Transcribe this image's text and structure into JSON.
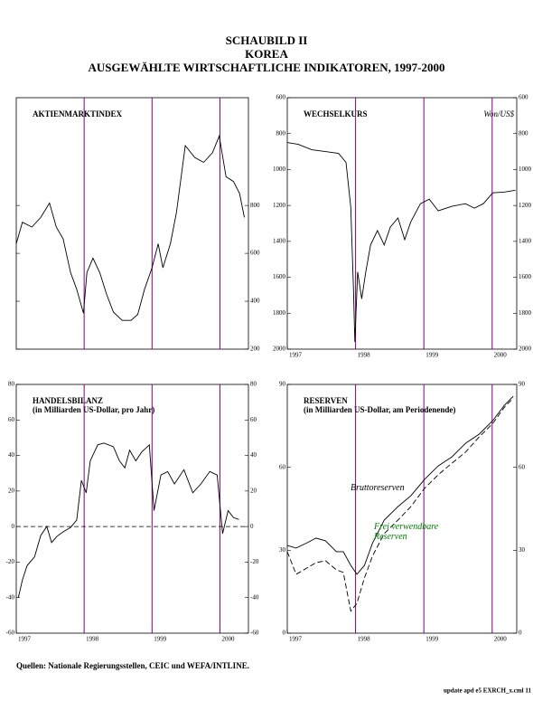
{
  "title": [
    "SCHAUBILD II",
    "KOREA",
    "AUSGEWÄHLTE WIRTSCHAFTLICHE INDIKATOREN, 1997-2000"
  ],
  "source": "Quellen:  Nationale Regierungsstellen, CEIC und WEFA/INTLINE.",
  "footnote": "update apd e5 EXRCH_x.cml 11",
  "chart_data": [
    {
      "type": "line",
      "title": "AKTIENMARKTINDEX",
      "x": [
        1997.0,
        1997.09,
        1997.23,
        1997.36,
        1997.49,
        1997.59,
        1997.69,
        1997.8,
        1997.89,
        1997.99,
        1998.04,
        1998.13,
        1998.23,
        1998.33,
        1998.43,
        1998.56,
        1998.69,
        1998.79,
        1998.89,
        1999.0,
        1999.09,
        1999.16,
        1999.27,
        1999.36,
        1999.49,
        1999.63,
        1999.76,
        1999.89,
        1999.99,
        2000.09,
        2000.2,
        2000.29,
        2000.36
      ],
      "series": [
        {
          "color": "#000000",
          "values": [
            640,
            730,
            710,
            750,
            810,
            710,
            660,
            520,
            450,
            350,
            520,
            580,
            520,
            430,
            355,
            320,
            320,
            345,
            450,
            540,
            640,
            540,
            640,
            770,
            1050,
            1000,
            980,
            1020,
            1090,
            920,
            900,
            850,
            750
          ]
        }
      ],
      "xlim": [
        1997,
        2000.42
      ],
      "ylim": [
        200,
        1250
      ],
      "yticks": [
        200,
        400,
        600,
        800
      ],
      "ytick_sides": [
        "right"
      ],
      "vlines": [
        1998,
        1999,
        2000
      ],
      "vline_color": "#800080"
    },
    {
      "type": "line",
      "title": "WECHSELKURS",
      "annotation": "Won/US$",
      "x": [
        1997.0,
        1997.16,
        1997.36,
        1997.56,
        1997.75,
        1997.86,
        1997.93,
        1997.97,
        1997.99,
        1998.03,
        1998.09,
        1998.15,
        1998.22,
        1998.32,
        1998.42,
        1998.51,
        1998.62,
        1998.72,
        1998.81,
        1998.95,
        1999.08,
        1999.21,
        1999.41,
        1999.61,
        1999.74,
        1999.87,
        2000.01,
        2000.18,
        2000.34
      ],
      "series": [
        {
          "color": "#000000",
          "values": [
            850,
            860,
            890,
            900,
            910,
            960,
            1210,
            1670,
            1960,
            1570,
            1720,
            1570,
            1420,
            1340,
            1420,
            1320,
            1270,
            1390,
            1290,
            1190,
            1165,
            1230,
            1205,
            1190,
            1215,
            1190,
            1130,
            1125,
            1115
          ]
        }
      ],
      "xlim": [
        1997,
        2000.36
      ],
      "ylim": [
        600,
        2000
      ],
      "y_inverted": true,
      "yticks": [
        600,
        800,
        1000,
        1200,
        1400,
        1600,
        1800,
        2000
      ],
      "ytick_sides": [
        "left",
        "right"
      ],
      "xticks": [
        1997,
        1998,
        1999,
        2000
      ],
      "vlines": [
        1998,
        1999,
        2000
      ],
      "vline_color": "#800080"
    },
    {
      "type": "line",
      "title": "HANDELSBILANZ",
      "subtitle": "(in Milliarden US-Dollar, pro Jahr)",
      "x": [
        1997.03,
        1997.09,
        1997.16,
        1997.27,
        1997.36,
        1997.45,
        1997.52,
        1997.6,
        1997.69,
        1997.8,
        1997.89,
        1997.96,
        1998.03,
        1998.09,
        1998.2,
        1998.29,
        1998.43,
        1998.52,
        1998.6,
        1998.67,
        1998.76,
        1998.85,
        1998.96,
        1999.03,
        1999.13,
        1999.23,
        1999.33,
        1999.47,
        1999.6,
        1999.72,
        1999.85,
        1999.96,
        2000.04,
        2000.12,
        2000.2,
        2000.28
      ],
      "series": [
        {
          "color": "#000000",
          "values": [
            -40,
            -30,
            -22,
            -17,
            -5,
            0,
            -9,
            -5.5,
            -3,
            -0.5,
            3.6,
            26,
            19,
            37,
            46,
            47,
            45,
            37,
            33,
            43,
            37,
            42,
            46,
            9,
            29,
            31,
            24,
            32,
            19,
            24,
            31,
            29,
            -4,
            9,
            5,
            4
          ]
        }
      ],
      "xlim": [
        1997,
        2000.42
      ],
      "ylim": [
        -60,
        80
      ],
      "yticks": [
        -60,
        -40,
        -20,
        0,
        20,
        40,
        60,
        80
      ],
      "ytick_sides": [
        "left",
        "right"
      ],
      "xticks": [
        1997,
        1998,
        1999,
        2000
      ],
      "reference_line": 0,
      "vlines": [
        1998,
        1999,
        2000
      ],
      "vline_color": "#800080"
    },
    {
      "type": "line",
      "title": "RESERVEN",
      "subtitle": "(in Milliarden US-Dollar, am Periodenende)",
      "x": [
        1997.0,
        1997.13,
        1997.29,
        1997.42,
        1997.56,
        1997.72,
        1997.82,
        1997.93,
        1998.02,
        1998.13,
        1998.25,
        1998.42,
        1998.62,
        1998.81,
        1999.01,
        1999.21,
        1999.41,
        1999.61,
        1999.81,
        2000.01,
        2000.18,
        2000.31
      ],
      "series": [
        {
          "name": "Bruttoreserven",
          "color": "#000000",
          "name_color": "#000000",
          "dashed": false,
          "values": [
            31.7,
            30.8,
            32.7,
            34.4,
            33.4,
            29.5,
            29.5,
            24.5,
            21.3,
            24.5,
            32.7,
            40.9,
            45.8,
            49.7,
            55.6,
            60.5,
            63.8,
            68.7,
            72,
            76.9,
            82.5,
            85.7
          ]
        },
        {
          "name": "Frei verwendbare Reserven",
          "color": "#000000",
          "name_color": "#008000",
          "dashed": true,
          "values": [
            29.5,
            21.3,
            23.6,
            25.5,
            26.2,
            22.9,
            22,
            8,
            10.8,
            20,
            28,
            36,
            40.9,
            45.8,
            52.4,
            57.3,
            61.5,
            65.5,
            71,
            75.9,
            81.8,
            85.1
          ]
        }
      ],
      "xlim": [
        1997,
        2000.36
      ],
      "ylim": [
        0,
        90
      ],
      "yticks": [
        0,
        30,
        60,
        90
      ],
      "ytick_sides": [
        "left",
        "right"
      ],
      "xticks": [
        1997,
        1998,
        1999,
        2000
      ],
      "vlines": [
        1998,
        1999,
        2000
      ],
      "vline_color": "#800080"
    }
  ]
}
